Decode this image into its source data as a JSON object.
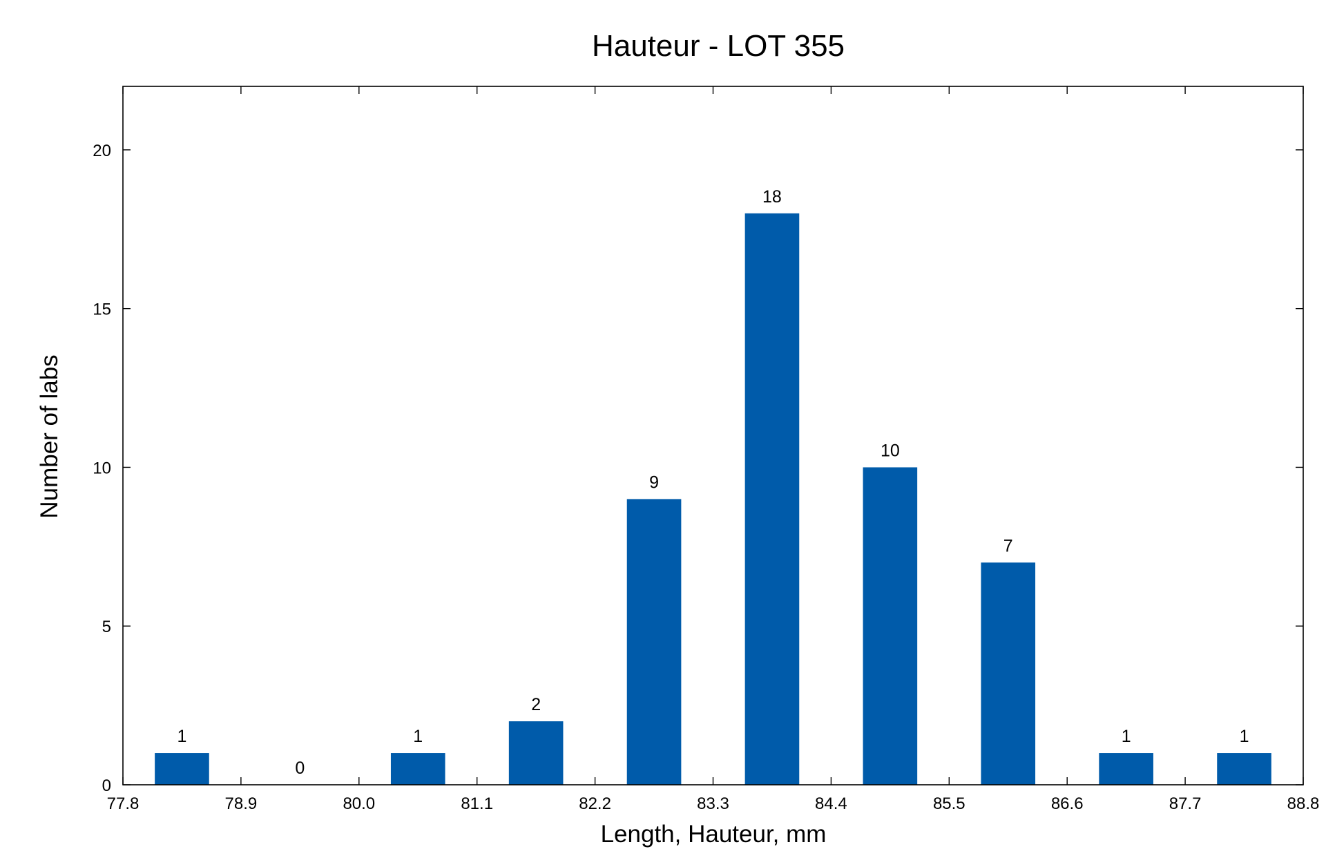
{
  "chart_data": {
    "type": "bar",
    "title": "Hauteur - LOT 355",
    "xlabel": "Length, Hauteur, mm",
    "ylabel": "Number of labs",
    "xlim": [
      77.8,
      88.8
    ],
    "ylim": [
      0,
      22
    ],
    "x_ticks": [
      "77.8",
      "78.9",
      "80.0",
      "81.1",
      "82.2",
      "83.3",
      "84.4",
      "85.5",
      "86.6",
      "87.7",
      "88.8"
    ],
    "y_ticks": [
      0,
      5,
      10,
      15,
      20
    ],
    "bin_width": 1.1,
    "bin_starts": [
      77.8,
      78.9,
      80.0,
      81.1,
      82.2,
      83.3,
      84.4,
      85.5,
      86.6,
      87.7
    ],
    "values": [
      1,
      0,
      1,
      2,
      9,
      18,
      10,
      7,
      1,
      1
    ],
    "data_labels": [
      "1",
      "0",
      "1",
      "2",
      "9",
      "18",
      "10",
      "7",
      "1",
      "1"
    ],
    "bar_color": "#005BAA",
    "grid": false,
    "legend": "none"
  }
}
